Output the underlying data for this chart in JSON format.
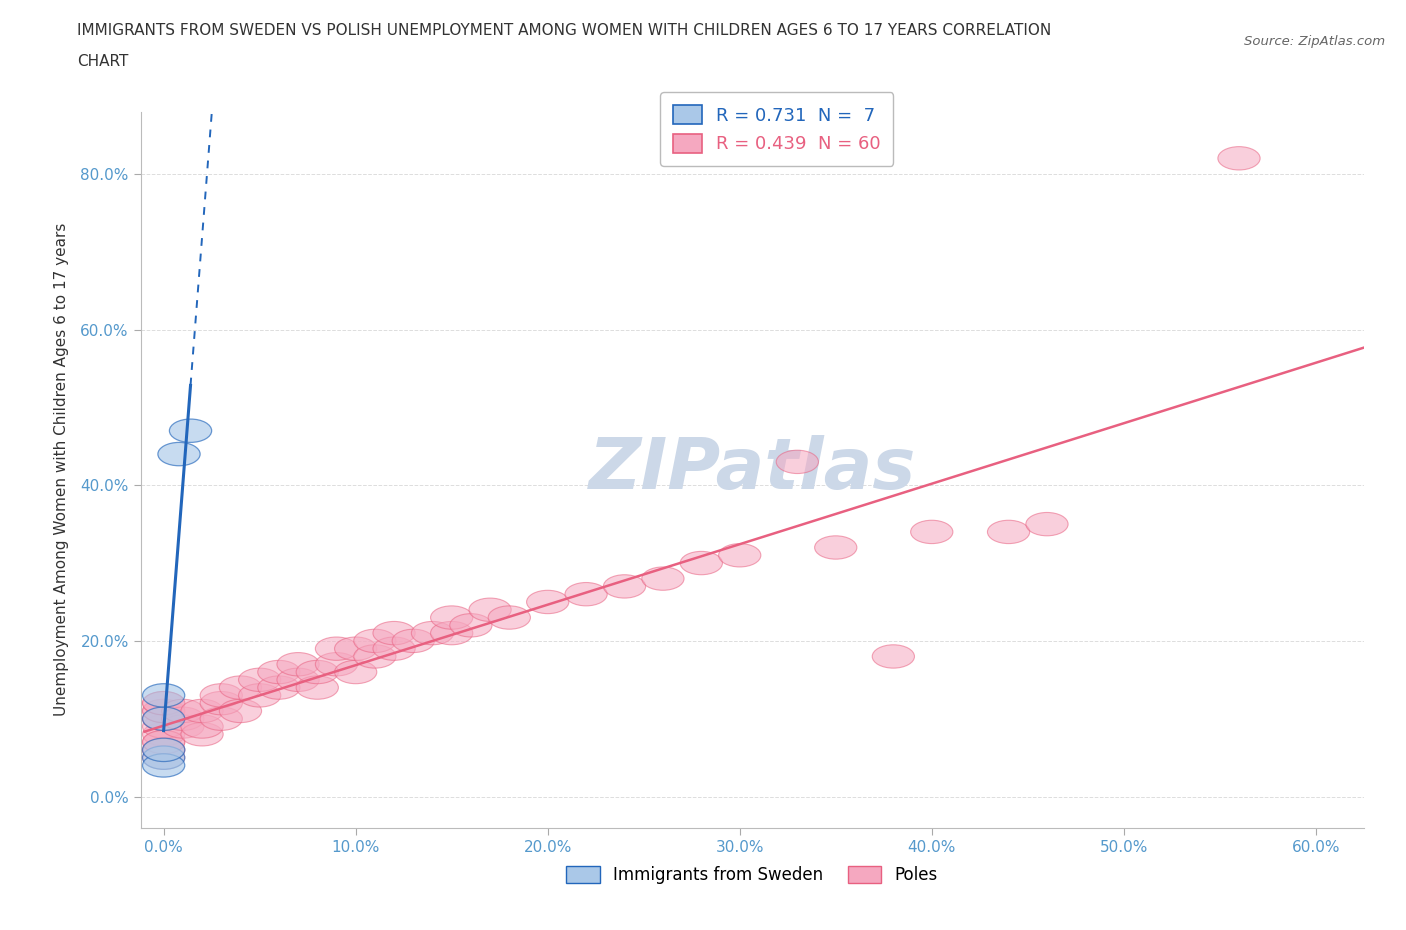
{
  "title_line1": "IMMIGRANTS FROM SWEDEN VS POLISH UNEMPLOYMENT AMONG WOMEN WITH CHILDREN AGES 6 TO 17 YEARS CORRELATION",
  "title_line2": "CHART",
  "source": "Source: ZipAtlas.com",
  "ylabel_label": "Unemployment Among Women with Children Ages 6 to 17 years",
  "x_tick_labels": [
    "0.0%",
    "10.0%",
    "20.0%",
    "30.0%",
    "40.0%",
    "50.0%",
    "60.0%"
  ],
  "x_tick_values": [
    0.0,
    0.1,
    0.2,
    0.3,
    0.4,
    0.5,
    0.6
  ],
  "y_tick_labels": [
    "0.0%",
    "20.0%",
    "40.0%",
    "60.0%",
    "80.0%"
  ],
  "y_tick_values": [
    0.0,
    0.2,
    0.4,
    0.6,
    0.8
  ],
  "xlim": [
    -0.012,
    0.625
  ],
  "ylim": [
    -0.04,
    0.88
  ],
  "sweden_R": 0.731,
  "sweden_N": 7,
  "poles_R": 0.439,
  "poles_N": 60,
  "sweden_color": "#aac8e8",
  "poles_color": "#f5a8c0",
  "sweden_line_color": "#2266bb",
  "poles_line_color": "#e86080",
  "sweden_points": [
    [
      0.0,
      0.05
    ],
    [
      0.0,
      0.04
    ],
    [
      0.0,
      0.06
    ],
    [
      0.0,
      0.1
    ],
    [
      0.0,
      0.13
    ],
    [
      0.008,
      0.44
    ],
    [
      0.014,
      0.47
    ]
  ],
  "poles_points": [
    [
      0.0,
      0.05
    ],
    [
      0.0,
      0.06
    ],
    [
      0.0,
      0.07
    ],
    [
      0.0,
      0.08
    ],
    [
      0.0,
      0.09
    ],
    [
      0.0,
      0.1
    ],
    [
      0.0,
      0.1
    ],
    [
      0.0,
      0.11
    ],
    [
      0.0,
      0.11
    ],
    [
      0.0,
      0.12
    ],
    [
      0.0,
      0.12
    ],
    [
      0.0,
      0.06
    ],
    [
      0.0,
      0.07
    ],
    [
      0.01,
      0.09
    ],
    [
      0.01,
      0.1
    ],
    [
      0.01,
      0.11
    ],
    [
      0.02,
      0.08
    ],
    [
      0.02,
      0.09
    ],
    [
      0.02,
      0.11
    ],
    [
      0.03,
      0.1
    ],
    [
      0.03,
      0.12
    ],
    [
      0.03,
      0.13
    ],
    [
      0.04,
      0.11
    ],
    [
      0.04,
      0.14
    ],
    [
      0.05,
      0.13
    ],
    [
      0.05,
      0.15
    ],
    [
      0.06,
      0.14
    ],
    [
      0.06,
      0.16
    ],
    [
      0.07,
      0.15
    ],
    [
      0.07,
      0.17
    ],
    [
      0.08,
      0.14
    ],
    [
      0.08,
      0.16
    ],
    [
      0.09,
      0.17
    ],
    [
      0.09,
      0.19
    ],
    [
      0.1,
      0.16
    ],
    [
      0.1,
      0.19
    ],
    [
      0.11,
      0.18
    ],
    [
      0.11,
      0.2
    ],
    [
      0.12,
      0.19
    ],
    [
      0.12,
      0.21
    ],
    [
      0.13,
      0.2
    ],
    [
      0.14,
      0.21
    ],
    [
      0.15,
      0.21
    ],
    [
      0.15,
      0.23
    ],
    [
      0.16,
      0.22
    ],
    [
      0.17,
      0.24
    ],
    [
      0.18,
      0.23
    ],
    [
      0.2,
      0.25
    ],
    [
      0.22,
      0.26
    ],
    [
      0.24,
      0.27
    ],
    [
      0.26,
      0.28
    ],
    [
      0.28,
      0.3
    ],
    [
      0.3,
      0.31
    ],
    [
      0.33,
      0.43
    ],
    [
      0.35,
      0.32
    ],
    [
      0.38,
      0.18
    ],
    [
      0.4,
      0.34
    ],
    [
      0.44,
      0.34
    ],
    [
      0.46,
      0.35
    ],
    [
      0.56,
      0.82
    ]
  ],
  "watermark": "ZIPatlas",
  "watermark_color": "#ccd8e8",
  "background_color": "#ffffff",
  "grid_color": "#dddddd"
}
